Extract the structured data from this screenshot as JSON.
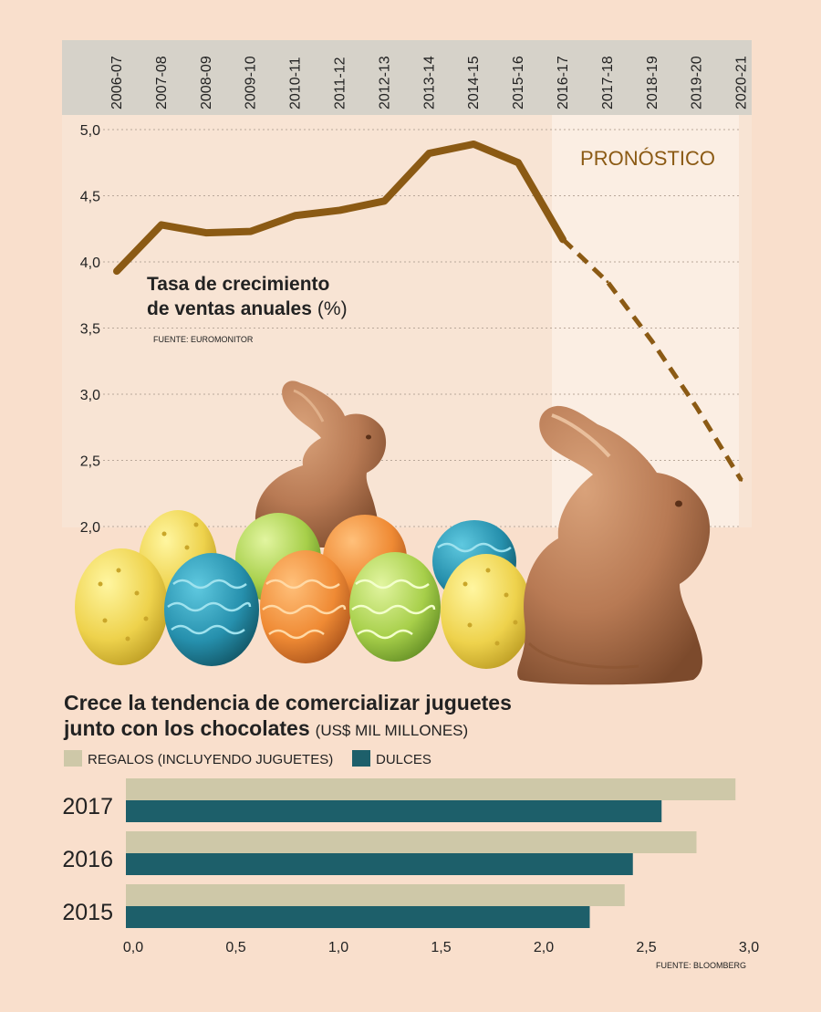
{
  "chart_data": [
    {
      "type": "line",
      "title": "Tasa de crecimiento de ventas anuales",
      "title_line1": "Tasa de crecimiento",
      "title_line2": "de ventas anuales",
      "unit": "(%)",
      "source": "FUENTE: EUROMONITOR",
      "forecast_label": "PRONÓSTICO",
      "categories": [
        "2006-07",
        "2007-08",
        "2008-09",
        "2009-10",
        "2010-11",
        "2011-12",
        "2012-13",
        "2013-14",
        "2014-15",
        "2015-16",
        "2016-17",
        "2017-18",
        "2018-19",
        "2019-20",
        "2020-21"
      ],
      "yticks": [
        "5,0",
        "4,5",
        "4,0",
        "3,5",
        "3,0",
        "2,5",
        "2,0"
      ],
      "ylim": [
        2.0,
        5.0
      ],
      "grid": true,
      "series": [
        {
          "values": [
            3.93,
            4.28,
            4.22,
            4.23,
            4.35,
            4.39,
            4.46,
            4.82,
            4.89,
            4.75,
            4.17,
            3.85,
            3.4,
            2.9,
            2.35
          ],
          "forecast_from_index": 10
        }
      ],
      "colors": {
        "line": "#8b5a14",
        "forecast_band": "#fbeee3"
      }
    },
    {
      "type": "bar",
      "title": "Crece la tendencia de comercializar juguetes junto con los chocolates",
      "title_line1": "Crece la tendencia de comercializar juguetes",
      "title_line2": "junto con los chocolates",
      "unit": "(US$ MIL MILLONES)",
      "source": "FUENTE: BLOOMBERG",
      "orientation": "horizontal",
      "categories": [
        "2017",
        "2016",
        "2015"
      ],
      "series": [
        {
          "name": "REGALOS (INCLUYENDO JUGUETES)",
          "values": [
            2.97,
            2.78,
            2.43
          ],
          "color": "#cec8a8"
        },
        {
          "name": "DULCES",
          "values": [
            2.61,
            2.47,
            2.26
          ],
          "color": "#1d5f6a"
        }
      ],
      "xticks": [
        "0,0",
        "0,5",
        "1,0",
        "1,5",
        "2,0",
        "2,5",
        "3,0"
      ],
      "xlim": [
        0,
        3.0
      ],
      "legend_position": "top-left"
    }
  ]
}
